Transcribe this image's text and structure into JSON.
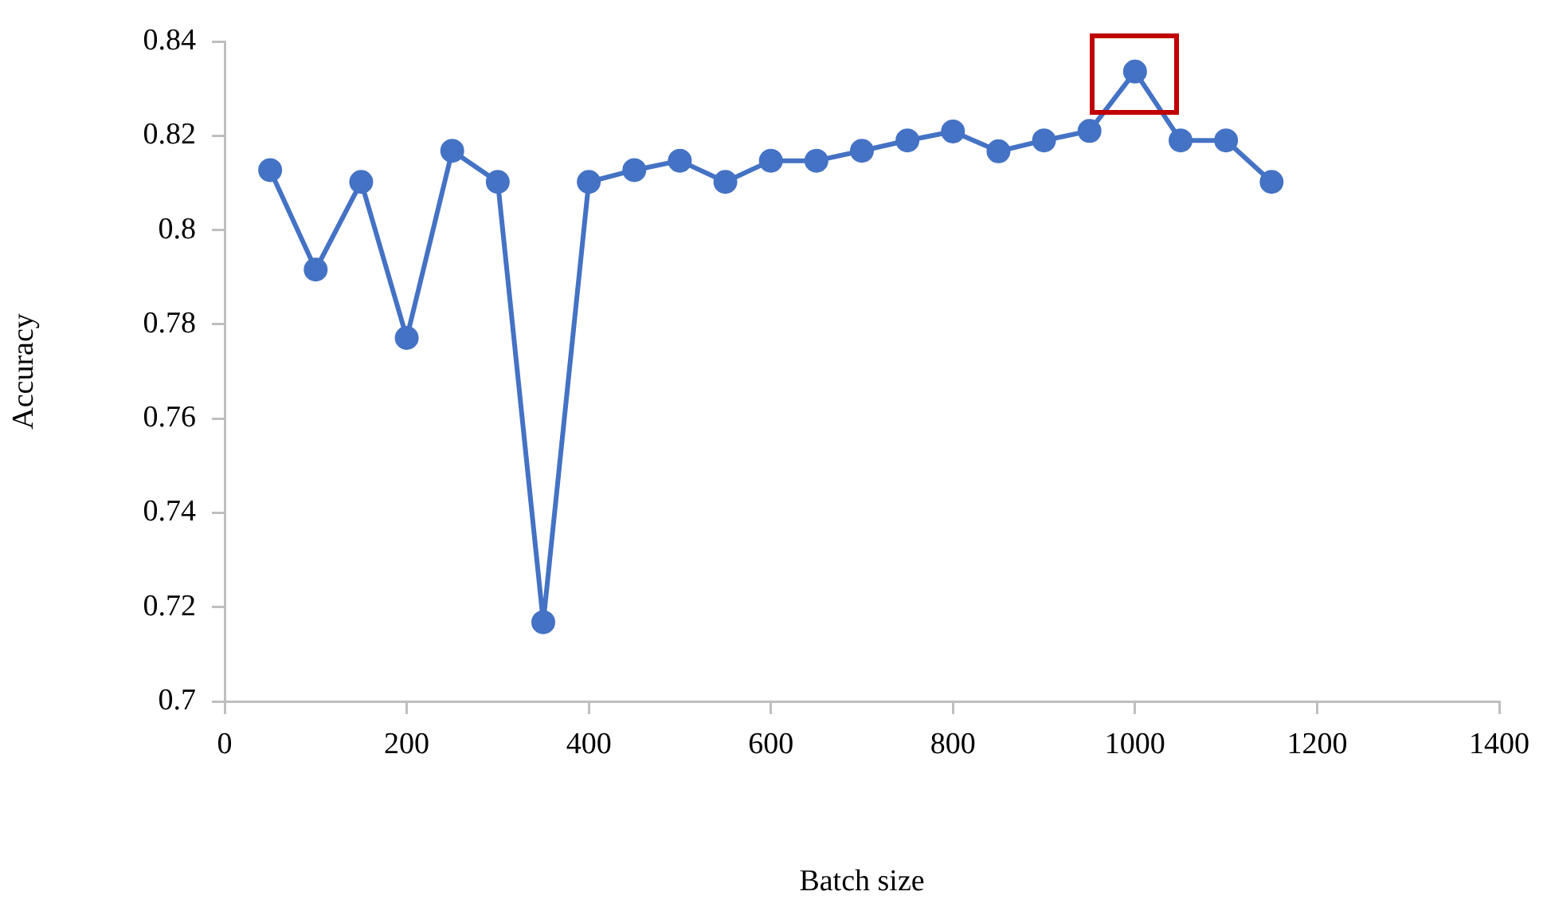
{
  "chart_data": {
    "type": "line",
    "xlabel": "Batch size",
    "ylabel": "Accuracy",
    "x": [
      50,
      100,
      150,
      200,
      250,
      300,
      350,
      400,
      450,
      500,
      550,
      600,
      650,
      700,
      750,
      800,
      850,
      900,
      950,
      1000,
      1050,
      1100,
      1150
    ],
    "series": [
      {
        "color": "#4472c4",
        "values": [
          0.8127,
          0.7916,
          0.8102,
          0.7771,
          0.8168,
          0.8102,
          0.7168,
          0.8102,
          0.8127,
          0.8147,
          0.8102,
          0.8147,
          0.8147,
          0.8168,
          0.819,
          0.8209,
          0.8167,
          0.819,
          0.821,
          0.8336,
          0.819,
          0.819,
          0.8102
        ]
      }
    ],
    "xlim": [
      0,
      1400
    ],
    "xticks": [
      0,
      200,
      400,
      600,
      800,
      1000,
      1200,
      1400
    ],
    "ylim": [
      0.7,
      0.84
    ],
    "yticks": [
      0.7,
      0.72,
      0.74,
      0.76,
      0.78,
      0.8,
      0.82,
      0.84
    ],
    "grid": false,
    "legend": false,
    "marker": "circle",
    "line_style": "solid"
  }
}
